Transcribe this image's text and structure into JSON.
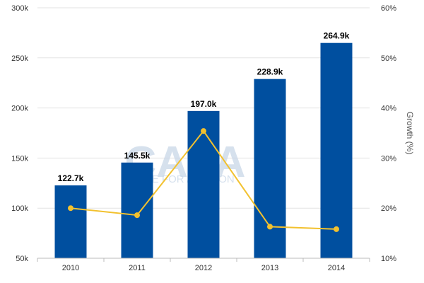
{
  "chart_data": {
    "type": "bar",
    "categories": [
      "2010",
      "2011",
      "2012",
      "2013",
      "2014"
    ],
    "series": [
      {
        "type": "bar",
        "axis": "left",
        "values": [
          122.7,
          145.5,
          197.0,
          228.9,
          264.9
        ],
        "data_labels": [
          "122.7k",
          "145.5k",
          "197.0k",
          "228.9k",
          "264.9k"
        ],
        "color": "#004f9f"
      },
      {
        "type": "line",
        "axis": "right",
        "values": [
          20.0,
          18.6,
          35.4,
          16.3,
          15.8
        ],
        "color": "#f2c12e"
      }
    ],
    "y_left": {
      "range": [
        50,
        300
      ],
      "ticks": [
        50,
        100,
        150,
        200,
        250,
        300
      ],
      "tick_labels": [
        "50k",
        "100k",
        "150k",
        "200k",
        "250k",
        "300k"
      ]
    },
    "y_right": {
      "label": "Growth (%)",
      "range": [
        10,
        60
      ],
      "ticks": [
        10,
        20,
        30,
        40,
        50,
        60
      ],
      "tick_labels": [
        "10%",
        "20%",
        "30%",
        "40%",
        "50%",
        "60%"
      ]
    },
    "grid": true,
    "legend": "none",
    "watermark": {
      "main": "CAPA",
      "sub": "LIVE FOR AVIATION"
    },
    "colors": {
      "grid": "#e3e3e3",
      "axis": "#bbbbbb"
    }
  }
}
